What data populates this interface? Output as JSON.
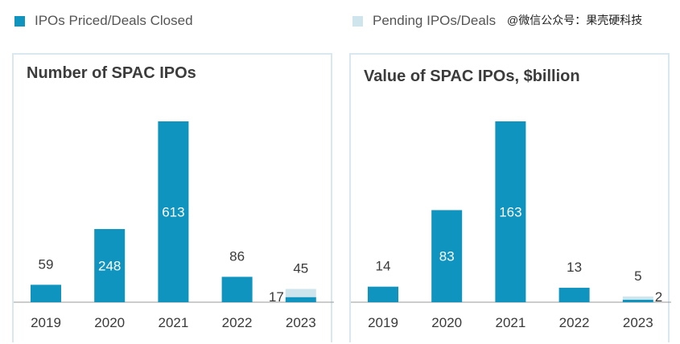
{
  "legend": {
    "closed_label": "IPOs Priced/Deals Closed",
    "pending_label": "Pending IPOs/Deals"
  },
  "watermark": "@微信公众号：果壳硬科技",
  "colors": {
    "closed": "#0f93bf",
    "pending": "#cfe5ee",
    "border": "#d8e8ee",
    "baseline": "#9a9a9a"
  },
  "chart_data": [
    {
      "type": "bar",
      "title": "Number of SPAC IPOs",
      "categories": [
        "2019",
        "2020",
        "2021",
        "2022",
        "2023"
      ],
      "series": [
        {
          "name": "IPOs Priced/Deals Closed",
          "values": [
            59,
            248,
            613,
            86,
            17
          ]
        },
        {
          "name": "Pending IPOs/Deals",
          "values": [
            0,
            0,
            0,
            0,
            28
          ]
        }
      ],
      "labels": [
        "59",
        "248",
        "613",
        "86",
        "45"
      ],
      "small_labels": [
        "",
        "",
        "",
        "",
        "17"
      ],
      "ylim": [
        0,
        613
      ]
    },
    {
      "type": "bar",
      "title": "Value of SPAC IPOs, $billion",
      "categories": [
        "2019",
        "2020",
        "2021",
        "2022",
        "2023"
      ],
      "series": [
        {
          "name": "IPOs Priced/Deals Closed",
          "values": [
            14,
            83,
            163,
            13,
            2
          ]
        },
        {
          "name": "Pending IPOs/Deals",
          "values": [
            0,
            0,
            0,
            0,
            3
          ]
        }
      ],
      "labels": [
        "14",
        "83",
        "163",
        "13",
        "5"
      ],
      "small_labels": [
        "",
        "",
        "",
        "",
        "2"
      ],
      "ylim": [
        0,
        163
      ]
    }
  ]
}
